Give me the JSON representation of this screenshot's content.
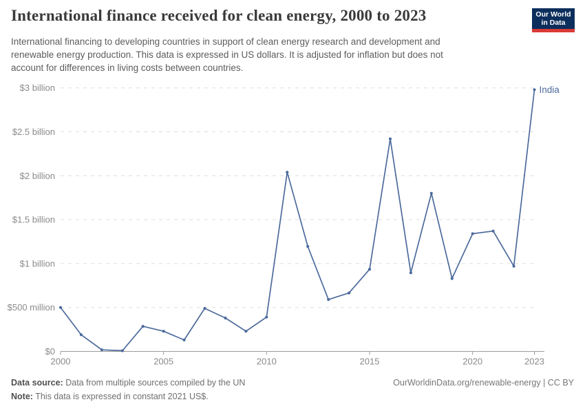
{
  "header": {
    "title": "International finance received for clean energy, 2000 to 2023",
    "subtitle_lines": [
      "International financing to developing countries in support of clean energy research and development and",
      "renewable energy production. This data is expressed in US dollars. It is adjusted for inflation but does not",
      "account for differences in living costs between countries."
    ],
    "logo": {
      "line1": "Our World",
      "line2": "in Data"
    }
  },
  "chart_data": {
    "type": "line",
    "title": "International finance received for clean energy, 2000 to 2023",
    "xlabel": "",
    "ylabel": "",
    "xlim": [
      2000,
      2023
    ],
    "ylim_million_usd": [
      0,
      3000
    ],
    "grid": "horizontal-dashed",
    "legend": "end-of-line-label",
    "x_ticks": [
      2000,
      2005,
      2010,
      2015,
      2020,
      2023
    ],
    "y_ticks": [
      {
        "value_million_usd": 0,
        "label": "$0"
      },
      {
        "value_million_usd": 500,
        "label": "$500 million"
      },
      {
        "value_million_usd": 1000,
        "label": "$1 billion"
      },
      {
        "value_million_usd": 1500,
        "label": "$1.5 billion"
      },
      {
        "value_million_usd": 2000,
        "label": "$2 billion"
      },
      {
        "value_million_usd": 2500,
        "label": "$2.5 billion"
      },
      {
        "value_million_usd": 3000,
        "label": "$3 billion"
      }
    ],
    "series": [
      {
        "name": "India",
        "end_label": "India",
        "x": [
          2000,
          2001,
          2002,
          2003,
          2004,
          2005,
          2006,
          2007,
          2008,
          2009,
          2010,
          2011,
          2012,
          2013,
          2014,
          2015,
          2016,
          2017,
          2018,
          2019,
          2020,
          2021,
          2022,
          2023
        ],
        "values_million_usd": [
          500,
          190,
          18,
          8,
          285,
          230,
          130,
          490,
          380,
          230,
          390,
          2040,
          1195,
          590,
          665,
          935,
          2420,
          895,
          1800,
          830,
          1340,
          1370,
          970,
          2980
        ]
      }
    ]
  },
  "footer": {
    "data_source_label": "Data source:",
    "data_source_text": "Data from multiple sources compiled by the UN",
    "note_label": "Note:",
    "note_text": "This data is expressed in constant 2021 US$.",
    "attribution": "OurWorldinData.org/renewable-energy | CC BY"
  },
  "colors": {
    "line": "#4c6a9c",
    "grid": "#dddddd",
    "axis": "#9a9a9a",
    "tick_text": "#8a8a8a",
    "logo_bg": "#0c2e5c",
    "logo_accent": "#d93a35"
  }
}
